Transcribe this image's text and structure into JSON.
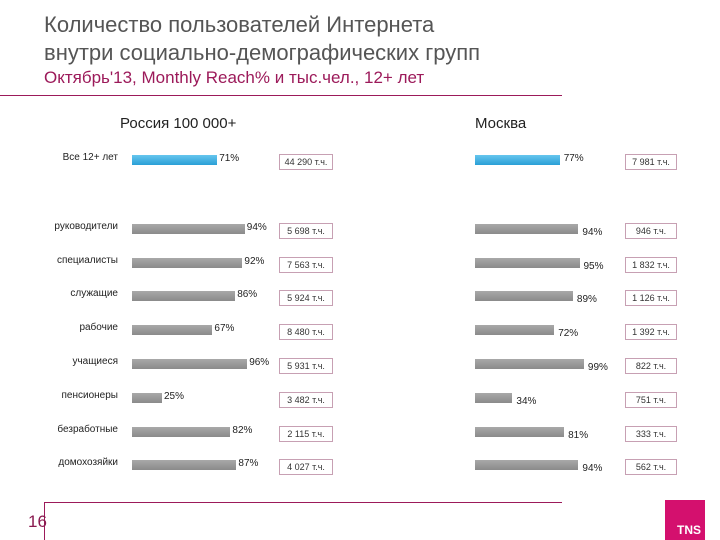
{
  "title": {
    "line1": "Количество пользователей Интернета",
    "line2": "внутри социально-демографических групп",
    "subtitle": "Октябрь'13, Monthly Reach% и тыс.чел., 12+ лет"
  },
  "page_number": "16",
  "logo_text": "TNS",
  "colors": {
    "accent": "#9c1a5a",
    "highlight_bar": "#2a9fd6",
    "bar": "#999999",
    "logo": "#d4106e"
  },
  "chart_data": [
    {
      "type": "bar",
      "title": "Россия 100 000+",
      "categories": [
        "Все 12+ лет",
        "руководители",
        "специалисты",
        "служащие",
        "рабочие",
        "учащиеся",
        "пенсионеры",
        "безработные",
        "домохозяйки"
      ],
      "values": [
        71,
        94,
        92,
        86,
        67,
        96,
        25,
        82,
        87
      ],
      "value_labels": [
        "71%",
        "94%",
        "92%",
        "86%",
        "67%",
        "96%",
        "25%",
        "82%",
        "87%"
      ],
      "counts": [
        "44 290 т.ч.",
        "5 698 т.ч.",
        "7 563 т.ч.",
        "5 924 т.ч.",
        "8 480 т.ч.",
        "5 931 т.ч.",
        "3 482 т.ч.",
        "2 115 т.ч.",
        "4 027 т.ч."
      ],
      "ylim": [
        0,
        100
      ]
    },
    {
      "type": "bar",
      "title": "Москва",
      "categories": [
        "Все 12+ лет",
        "руководители",
        "специалисты",
        "служащие",
        "рабочие",
        "учащиеся",
        "пенсионеры",
        "безработные",
        "домохозяйки"
      ],
      "values": [
        77,
        94,
        95,
        89,
        72,
        99,
        34,
        81,
        94
      ],
      "value_labels": [
        "77%",
        "94%",
        "95%",
        "89%",
        "72%",
        "99%",
        "34%",
        "81%",
        "94%"
      ],
      "counts": [
        "7 981 т.ч.",
        "946 т.ч.",
        "1 832 т.ч.",
        "1 126 т.ч.",
        "1 392 т.ч.",
        "822 т.ч.",
        "751 т.ч.",
        "333 т.ч.",
        "562 т.ч."
      ],
      "ylim": [
        0,
        100
      ]
    }
  ]
}
